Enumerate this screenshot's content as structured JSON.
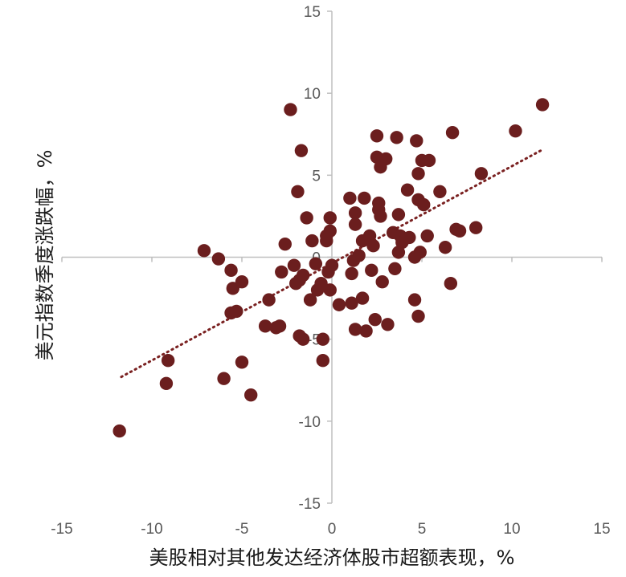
{
  "chart_data": {
    "type": "scatter",
    "xlabel": "美股相对其他发达经济体股市超额表现，%",
    "ylabel": "美元指数季度涨跌幅，%",
    "xlim": [
      -15,
      15
    ],
    "ylim": [
      -15,
      15
    ],
    "x_ticks": [
      "-15",
      "-10",
      "-5",
      "0",
      "5",
      "10",
      "15"
    ],
    "y_ticks": [
      "15",
      "10",
      "5",
      "0",
      "-5",
      "-10",
      "-15"
    ],
    "x_tick_values": [
      -15,
      -10,
      -5,
      0,
      5,
      10,
      15
    ],
    "y_tick_values": [
      15,
      10,
      5,
      0,
      -5,
      -10,
      -15
    ],
    "grid": false,
    "legend": "none",
    "marker_color": "#6b1e1e",
    "axis_color": "#bfbfbf",
    "trendline": {
      "style": "dotted",
      "color": "#7a2121",
      "from": [
        -11.7,
        -7.3
      ],
      "to": [
        11.6,
        6.5
      ]
    },
    "points": [
      [
        -11.8,
        -10.6
      ],
      [
        -9.2,
        -7.7
      ],
      [
        -9.1,
        -6.3
      ],
      [
        -7.1,
        0.4
      ],
      [
        -6.3,
        -0.1
      ],
      [
        -6.0,
        -7.4
      ],
      [
        -5.6,
        -0.8
      ],
      [
        -5.6,
        -3.4
      ],
      [
        -5.5,
        -1.9
      ],
      [
        -5.3,
        -3.3
      ],
      [
        -5.0,
        -1.5
      ],
      [
        -5.0,
        -6.4
      ],
      [
        -4.5,
        -8.4
      ],
      [
        -3.7,
        -4.2
      ],
      [
        -3.5,
        -2.6
      ],
      [
        -3.1,
        -4.3
      ],
      [
        -2.9,
        -4.2
      ],
      [
        -2.8,
        -0.9
      ],
      [
        -2.6,
        0.8
      ],
      [
        -2.3,
        9.0
      ],
      [
        -2.1,
        -0.5
      ],
      [
        -2.0,
        -1.6
      ],
      [
        -1.9,
        4.0
      ],
      [
        -1.8,
        -1.4
      ],
      [
        -1.8,
        -4.8
      ],
      [
        -1.7,
        6.5
      ],
      [
        -1.6,
        -1.1
      ],
      [
        -1.6,
        -5.0
      ],
      [
        -1.4,
        2.4
      ],
      [
        -1.2,
        -2.6
      ],
      [
        -1.1,
        1.0
      ],
      [
        -0.9,
        -0.4
      ],
      [
        -0.8,
        -2.0
      ],
      [
        -0.6,
        -1.6
      ],
      [
        -0.5,
        -5.0
      ],
      [
        -0.5,
        -6.3
      ],
      [
        -0.3,
        1.0
      ],
      [
        -0.3,
        1.3
      ],
      [
        -0.2,
        -0.9
      ],
      [
        -0.1,
        1.6
      ],
      [
        -0.1,
        2.4
      ],
      [
        -0.1,
        -2.0
      ],
      [
        0.0,
        -0.5
      ],
      [
        0.4,
        -2.9
      ],
      [
        1.0,
        3.6
      ],
      [
        1.1,
        -2.8
      ],
      [
        1.1,
        -1.0
      ],
      [
        1.2,
        -0.2
      ],
      [
        1.3,
        2.7
      ],
      [
        1.3,
        2.0
      ],
      [
        1.3,
        -4.4
      ],
      [
        1.5,
        0.1
      ],
      [
        1.7,
        1.0
      ],
      [
        1.7,
        -2.5
      ],
      [
        1.8,
        3.6
      ],
      [
        1.9,
        -4.5
      ],
      [
        2.1,
        1.3
      ],
      [
        2.2,
        -0.8
      ],
      [
        2.3,
        0.7
      ],
      [
        2.4,
        -3.8
      ],
      [
        2.5,
        7.4
      ],
      [
        2.5,
        6.1
      ],
      [
        2.6,
        3.3
      ],
      [
        2.6,
        2.9
      ],
      [
        2.7,
        2.5
      ],
      [
        2.7,
        5.5
      ],
      [
        2.8,
        -1.5
      ],
      [
        3.0,
        6.0
      ],
      [
        3.1,
        -4.1
      ],
      [
        3.4,
        1.5
      ],
      [
        3.5,
        -0.7
      ],
      [
        3.6,
        7.3
      ],
      [
        3.7,
        2.6
      ],
      [
        3.7,
        0.3
      ],
      [
        3.8,
        1.3
      ],
      [
        3.9,
        0.9
      ],
      [
        4.2,
        4.1
      ],
      [
        4.3,
        1.2
      ],
      [
        4.6,
        0.0
      ],
      [
        4.6,
        -2.6
      ],
      [
        4.7,
        7.1
      ],
      [
        4.8,
        5.1
      ],
      [
        4.8,
        3.5
      ],
      [
        4.8,
        -3.6
      ],
      [
        4.9,
        0.3
      ],
      [
        5.0,
        5.9
      ],
      [
        5.1,
        3.2
      ],
      [
        5.3,
        1.3
      ],
      [
        5.4,
        5.9
      ],
      [
        6.0,
        4.0
      ],
      [
        6.3,
        0.6
      ],
      [
        6.6,
        -1.6
      ],
      [
        6.7,
        7.6
      ],
      [
        6.9,
        1.7
      ],
      [
        7.1,
        1.6
      ],
      [
        8.0,
        1.8
      ],
      [
        8.3,
        5.1
      ],
      [
        10.2,
        7.7
      ],
      [
        11.7,
        9.3
      ]
    ]
  }
}
